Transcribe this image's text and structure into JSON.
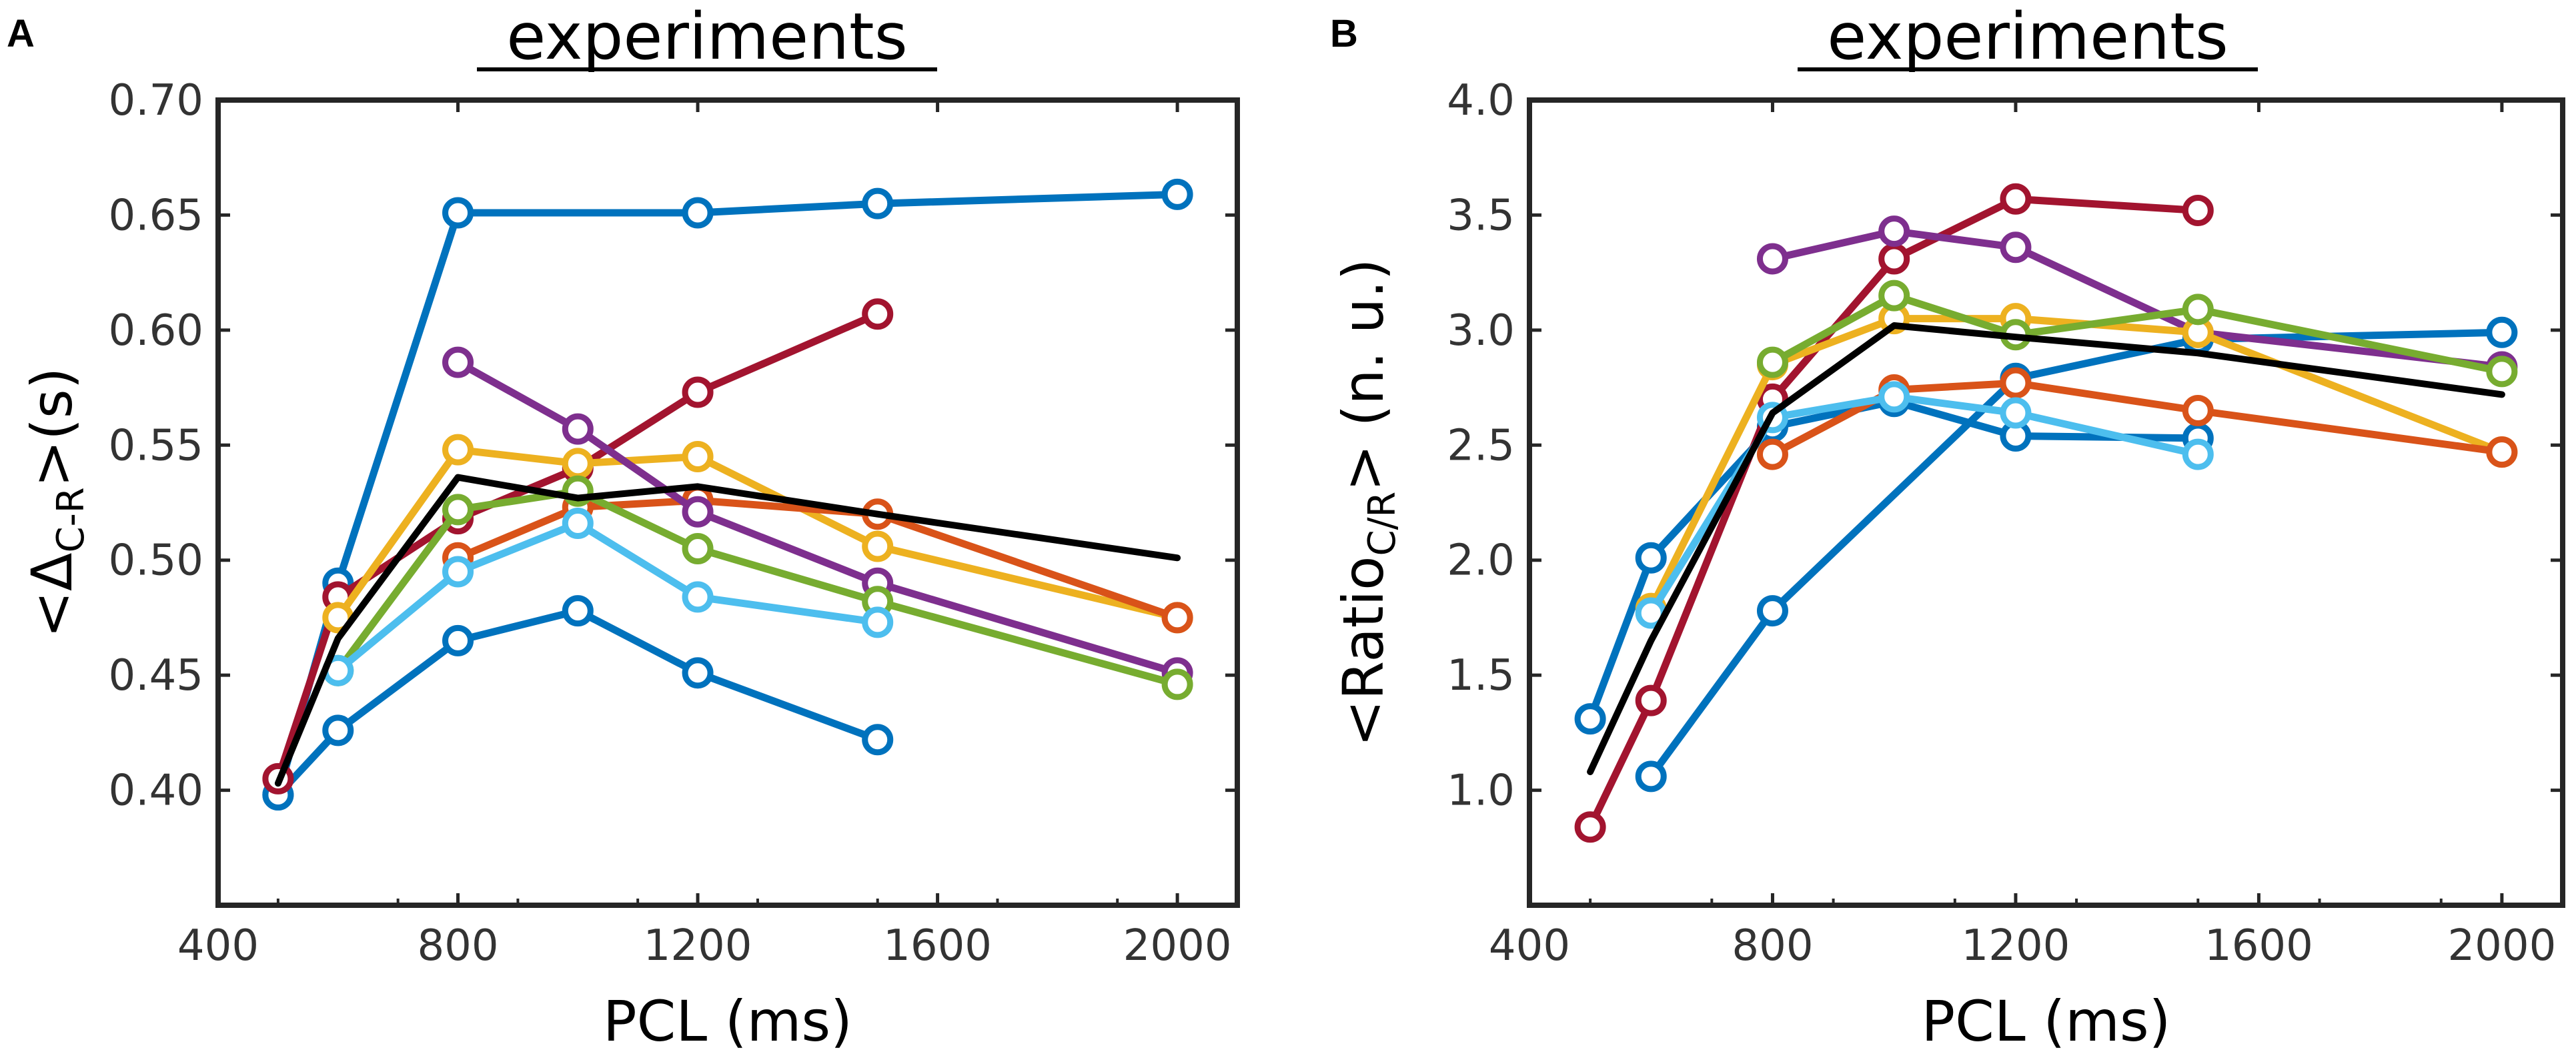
{
  "chart_data": [
    {
      "type": "line",
      "panel": "A",
      "title": "experiments",
      "xlabel": "PCL (ms)",
      "ylabel": {
        "prefix": "<Δ",
        "subscript": "C-R",
        "suffix": ">(s)"
      },
      "xlim": [
        400,
        2100
      ],
      "ylim": [
        0.35,
        0.7
      ],
      "xticks": [
        400,
        800,
        1200,
        1600,
        2000
      ],
      "yticks": [
        0.4,
        0.45,
        0.5,
        0.55,
        0.6,
        0.65,
        0.7
      ],
      "ytick_labels": [
        "0.40",
        "0.45",
        "0.50",
        "0.55",
        "0.60",
        "0.65",
        "0.70"
      ],
      "series": [
        {
          "name": "blue-high",
          "color": "#0072BD",
          "x": [
            500,
            600,
            800,
            1200,
            1500,
            2000
          ],
          "y": [
            0.398,
            0.49,
            0.651,
            0.651,
            0.655,
            0.659
          ]
        },
        {
          "name": "blue-low",
          "color": "#0072BD",
          "x": [
            500,
            600,
            800,
            1000,
            1200,
            1500
          ],
          "y": [
            0.398,
            0.426,
            0.465,
            0.478,
            0.451,
            0.422
          ]
        },
        {
          "name": "red",
          "color": "#A2142F",
          "x": [
            500,
            600,
            800,
            1000,
            1200,
            1500
          ],
          "y": [
            0.405,
            0.484,
            0.518,
            0.54,
            0.573,
            0.607
          ]
        },
        {
          "name": "yellow",
          "color": "#EDB120",
          "x": [
            600,
            800,
            1000,
            1200,
            1500,
            2000
          ],
          "y": [
            0.475,
            0.548,
            0.542,
            0.545,
            0.506,
            0.475
          ]
        },
        {
          "name": "orange",
          "color": "#D95319",
          "x": [
            800,
            1000,
            1200,
            1500,
            2000
          ],
          "y": [
            0.501,
            0.523,
            0.526,
            0.52,
            0.475
          ]
        },
        {
          "name": "purple",
          "color": "#7E2F8E",
          "x": [
            800,
            1000,
            1200,
            1500,
            2000
          ],
          "y": [
            0.586,
            0.557,
            0.521,
            0.49,
            0.451
          ]
        },
        {
          "name": "green",
          "color": "#77AC30",
          "x": [
            600,
            800,
            1000,
            1200,
            1500,
            2000
          ],
          "y": [
            0.452,
            0.522,
            0.53,
            0.505,
            0.482,
            0.446
          ]
        },
        {
          "name": "light-blue",
          "color": "#4DBEEE",
          "x": [
            600,
            800,
            1000,
            1200,
            1500
          ],
          "y": [
            0.452,
            0.495,
            0.516,
            0.484,
            0.473
          ]
        },
        {
          "name": "mean",
          "color": "#000000",
          "markers": false,
          "x": [
            500,
            600,
            800,
            1000,
            1200,
            1500,
            2000
          ],
          "y": [
            0.403,
            0.466,
            0.536,
            0.527,
            0.532,
            0.52,
            0.501
          ]
        }
      ]
    },
    {
      "type": "line",
      "panel": "B",
      "title": "experiments",
      "xlabel": "PCL (ms)",
      "ylabel": {
        "prefix": "<Ratio",
        "subscript": "C/R",
        "suffix": "> (n. u.)"
      },
      "xlim": [
        400,
        2100
      ],
      "ylim": [
        0.5,
        4.0
      ],
      "xticks": [
        400,
        800,
        1200,
        1600,
        2000
      ],
      "yticks": [
        1.0,
        1.5,
        2.0,
        2.5,
        3.0,
        3.5,
        4.0
      ],
      "ytick_labels": [
        "1.0",
        "1.5",
        "2.0",
        "2.5",
        "3.0",
        "3.5",
        "4.0"
      ],
      "series": [
        {
          "name": "blue-a",
          "color": "#0072BD",
          "x": [
            600,
            800,
            1200,
            1500,
            2000
          ],
          "y": [
            1.06,
            1.78,
            2.79,
            2.96,
            2.99
          ]
        },
        {
          "name": "blue-b",
          "color": "#0072BD",
          "x": [
            500,
            600,
            800,
            1000,
            1200,
            1500
          ],
          "y": [
            1.31,
            2.01,
            2.58,
            2.69,
            2.54,
            2.53
          ]
        },
        {
          "name": "red",
          "color": "#A2142F",
          "x": [
            500,
            600,
            800,
            1000,
            1200,
            1500
          ],
          "y": [
            0.84,
            1.39,
            2.7,
            3.31,
            3.57,
            3.52
          ]
        },
        {
          "name": "purple",
          "color": "#7E2F8E",
          "x": [
            800,
            1000,
            1200,
            1500,
            2000
          ],
          "y": [
            3.31,
            3.43,
            3.36,
            2.99,
            2.84
          ]
        },
        {
          "name": "yellow",
          "color": "#EDB120",
          "x": [
            600,
            800,
            1000,
            1200,
            1500,
            2000
          ],
          "y": [
            1.79,
            2.85,
            3.05,
            3.05,
            2.99,
            2.47
          ]
        },
        {
          "name": "green",
          "color": "#77AC30",
          "x": [
            800,
            1000,
            1200,
            1500,
            2000
          ],
          "y": [
            2.86,
            3.15,
            2.98,
            3.09,
            2.82
          ]
        },
        {
          "name": "orange",
          "color": "#D95319",
          "x": [
            800,
            1000,
            1200,
            1500,
            2000
          ],
          "y": [
            2.46,
            2.74,
            2.77,
            2.65,
            2.47
          ]
        },
        {
          "name": "light-blue",
          "color": "#4DBEEE",
          "x": [
            600,
            800,
            1000,
            1200,
            1500
          ],
          "y": [
            1.77,
            2.62,
            2.71,
            2.64,
            2.46
          ]
        },
        {
          "name": "mean",
          "color": "#000000",
          "markers": false,
          "x": [
            500,
            600,
            800,
            1000,
            1200,
            1500,
            2000
          ],
          "y": [
            1.08,
            1.65,
            2.64,
            3.02,
            2.97,
            2.9,
            2.72
          ]
        }
      ]
    }
  ]
}
